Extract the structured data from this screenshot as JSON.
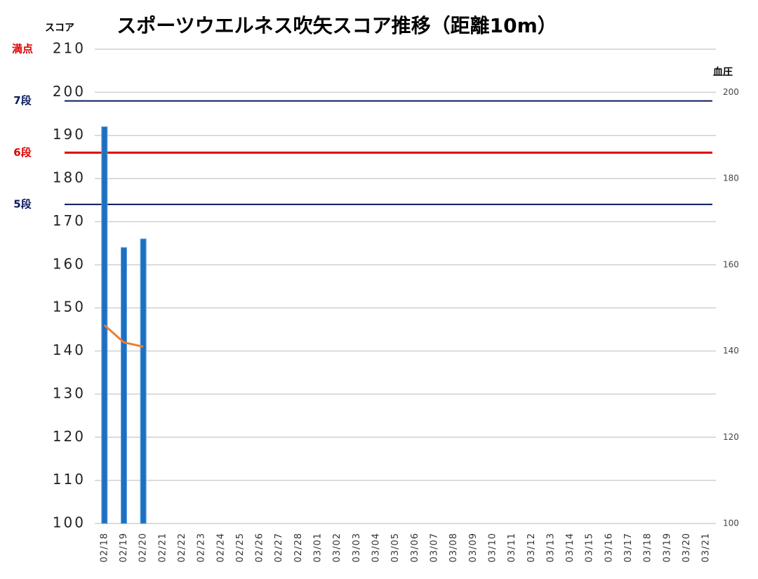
{
  "chart_data": {
    "type": "bar",
    "title": "スポーツウエルネス吹矢スコア推移（距離10m）",
    "ylabel": "スコア",
    "y2label": "血圧",
    "categories": [
      "02/18",
      "02/19",
      "02/20",
      "02/21",
      "02/22",
      "02/23",
      "02/24",
      "02/25",
      "02/26",
      "02/27",
      "02/28",
      "03/01",
      "03/02",
      "03/03",
      "03/04",
      "03/05",
      "03/06",
      "03/07",
      "03/08",
      "03/09",
      "03/10",
      "03/11",
      "03/12",
      "03/13",
      "03/14",
      "03/15",
      "03/16",
      "03/17",
      "03/18",
      "03/19",
      "03/20",
      "03/21"
    ],
    "series": [
      {
        "type": "bar",
        "color": "#1f6fc0",
        "values": [
          192,
          164,
          166,
          null,
          null,
          null,
          null,
          null,
          null,
          null,
          null,
          null,
          null,
          null,
          null,
          null,
          null,
          null,
          null,
          null,
          null,
          null,
          null,
          null,
          null,
          null,
          null,
          null,
          null,
          null,
          null,
          null
        ]
      },
      {
        "type": "line",
        "axis": "y2",
        "color": "#ed7d31",
        "values": [
          146,
          142,
          141,
          null,
          null,
          null,
          null,
          null,
          null,
          null,
          null,
          null,
          null,
          null,
          null,
          null,
          null,
          null,
          null,
          null,
          null,
          null,
          null,
          null,
          null,
          null,
          null,
          null,
          null,
          null,
          null,
          null
        ]
      }
    ],
    "ylim": [
      100,
      210
    ],
    "yticks": [
      100,
      110,
      120,
      130,
      140,
      150,
      160,
      170,
      180,
      190,
      200,
      210
    ],
    "y2lim": [
      100,
      210
    ],
    "y2ticks": [
      100,
      120,
      140,
      160,
      180,
      200
    ],
    "grid": true,
    "reference_lines": [
      {
        "label": "満点",
        "value": 210,
        "color": "#e00000",
        "line": false
      },
      {
        "label": "7段",
        "value": 198,
        "color": "#0a1a5c",
        "line": true
      },
      {
        "label": "6段",
        "value": 186,
        "color": "#e00000",
        "line": true
      },
      {
        "label": "5段",
        "value": 174,
        "color": "#0a1a5c",
        "line": true
      }
    ]
  }
}
